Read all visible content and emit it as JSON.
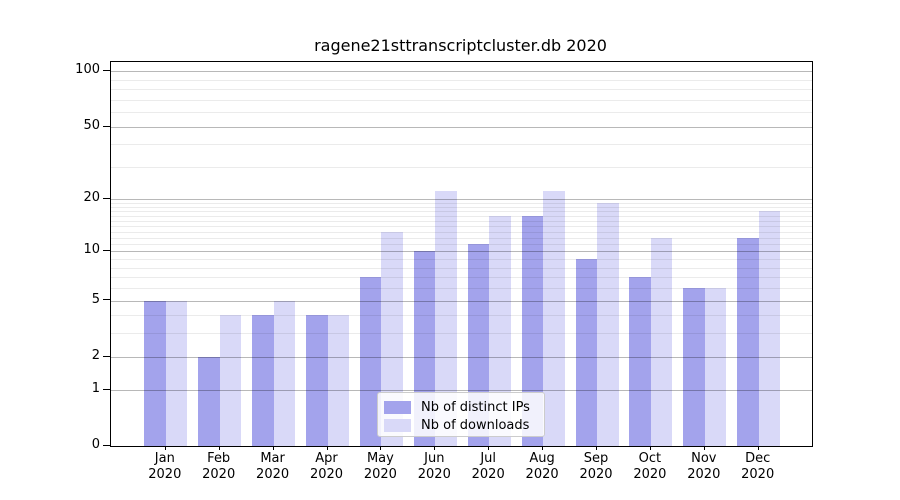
{
  "title": "ragene21sttranscriptcluster.db 2020",
  "chart_data": {
    "type": "bar",
    "title": "ragene21sttranscriptcluster.db 2020",
    "categories": [
      "Jan 2020",
      "Feb 2020",
      "Mar 2020",
      "Apr 2020",
      "May 2020",
      "Jun 2020",
      "Jul 2020",
      "Aug 2020",
      "Sep 2020",
      "Oct 2020",
      "Nov 2020",
      "Dec 2020"
    ],
    "x_months": [
      "Jan",
      "Feb",
      "Mar",
      "Apr",
      "May",
      "Jun",
      "Jul",
      "Aug",
      "Sep",
      "Oct",
      "Nov",
      "Dec"
    ],
    "x_year": "2020",
    "series": [
      {
        "name": "Nb of distinct IPs",
        "color": "#a3a3ec",
        "values": [
          5,
          2,
          4,
          4,
          7,
          10,
          11,
          16,
          9,
          7,
          6,
          12
        ]
      },
      {
        "name": "Nb of downloads",
        "color": "#d9d9f8",
        "values": [
          5,
          4,
          5,
          4,
          13,
          22,
          16,
          22,
          19,
          12,
          6,
          17
        ]
      }
    ],
    "yscale": "log1p",
    "ylim": [
      0,
      112
    ],
    "y_major_ticks": [
      0,
      1,
      2,
      5,
      10,
      20,
      50,
      100
    ],
    "y_minor_ticks": [
      3,
      4,
      6,
      7,
      8,
      9,
      11,
      12,
      13,
      14,
      15,
      16,
      17,
      18,
      19,
      30,
      40,
      60,
      70,
      80,
      90
    ],
    "grid": "horizontal, drawn over bars",
    "legend_position": "lower center",
    "colors": {
      "major_grid": "rgba(0,0,0,0.28)",
      "minor_grid": "rgba(0,0,0,0.08)",
      "axis": "#000000",
      "text": "#000000"
    }
  }
}
